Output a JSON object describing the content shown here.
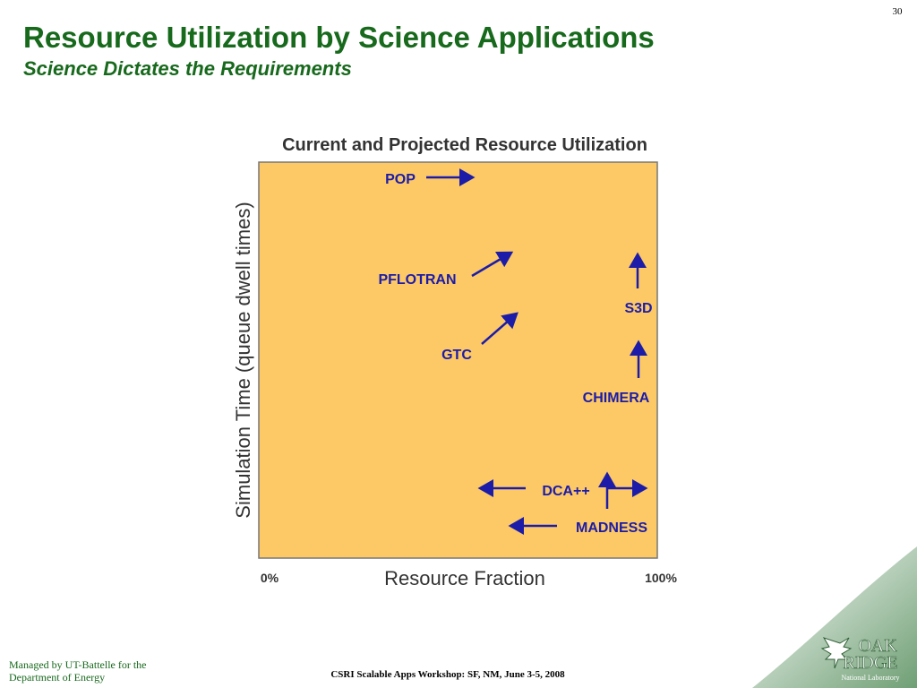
{
  "header": {
    "slide_number": "30",
    "title": "Resource Utilization by Science Applications",
    "subtitle": "Science Dictates the Requirements"
  },
  "diagram": {
    "title": "Current and Projected Resource Utilization",
    "y_axis_label": "Simulation Time (queue dwell times)",
    "x_axis_label": "Resource Fraction",
    "x_start_label": "0%",
    "x_end_label": "100%",
    "applications": [
      "POP",
      "PFLOTRAN",
      "S3D",
      "GTC",
      "CHIMERA",
      "DCA++",
      "MADNESS"
    ]
  },
  "footer": {
    "managed_by": [
      "Managed by UT-Battelle for the",
      "Department of Energy"
    ],
    "event": "CSRI Scalable Apps Workshop: SF, NM, June 3-5, 2008",
    "logo": [
      "OAK",
      "RIDGE",
      "National Laboratory"
    ]
  }
}
